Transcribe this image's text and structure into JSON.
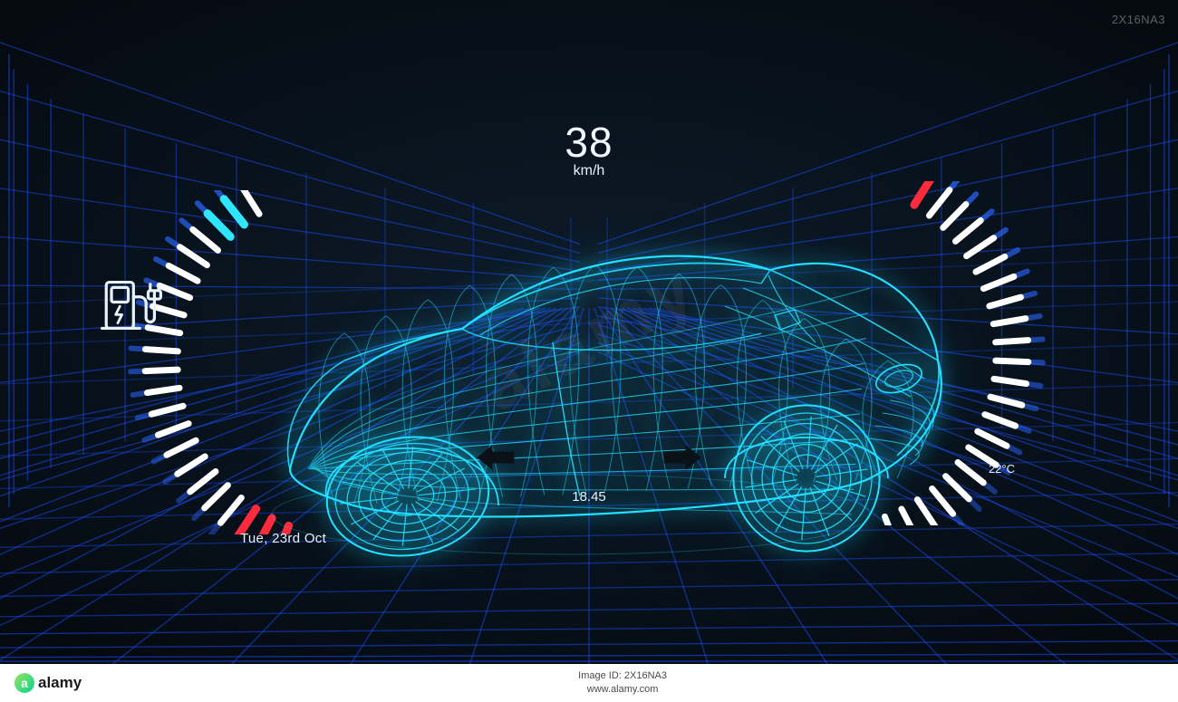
{
  "speed": {
    "value": "38",
    "unit": "km/h"
  },
  "arc_circles": {
    "total": 11,
    "filled": 3,
    "stroke": "#4a8fa8",
    "fill": "#f2f8ff",
    "radius": 13
  },
  "date": "Tue, 23rd Oct",
  "time": "18.45",
  "temperature": "22°C",
  "turn_signals": {
    "left": true,
    "right": true,
    "color": "#0f1820"
  },
  "grid": {
    "line_color": "#1a4fff",
    "line_opacity": 0.55
  },
  "left_gauge": {
    "tick_count": 22,
    "active_color": "#ffffff",
    "fade_color": "#2a66ff",
    "red_color": "#ff2a3c",
    "cyan_color": "#2fe6ff",
    "red_range": [
      0,
      3
    ],
    "accent_cyan_tick": 20
  },
  "right_gauge": {
    "tick_count": 22,
    "active_color": "#ffffff",
    "fade_color": "#2a66ff",
    "red_color": "#ff2a3c",
    "red_tick": 21
  },
  "car": {
    "wire_color": "#22e0ff",
    "glow_color": "#1fd6ff"
  },
  "watermark_corner": "2X16NA3",
  "watermark_diag": "alamy",
  "footer": {
    "logo_text": "alamy",
    "center_line1": "Image ID: 2X16NA3",
    "center_line2": "www.alamy.com",
    "right": ""
  }
}
